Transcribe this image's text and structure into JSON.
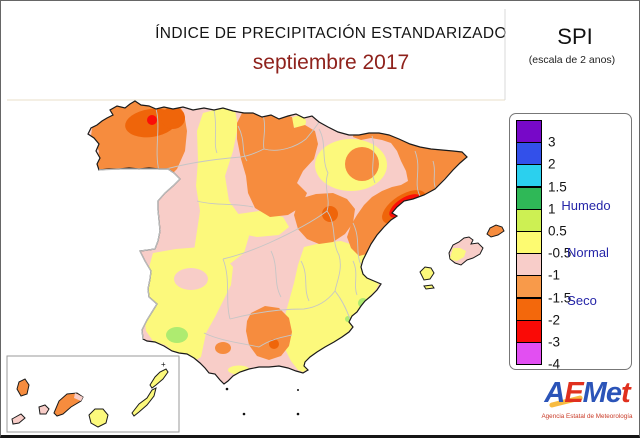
{
  "header": {
    "title": "ÍNDICE DE PRECIPITACIÓN ESTANDARIZADO",
    "subtitle": "septiembre 2017",
    "index_abbr": "SPI",
    "index_scale_note": "(escala de 2 anos)"
  },
  "legend": {
    "scale_values": [
      "3",
      "2",
      "1.5",
      "1",
      "0.5",
      "-0.5",
      "-1",
      "-1.5",
      "-2",
      "-3",
      "-4"
    ],
    "block_colors": [
      "#7708C8",
      "#3350EA",
      "#2BD0EE",
      "#2FB857",
      "#CDF053",
      "#FDFB71",
      "#F8CDC9",
      "#F89A4A",
      "#F3680C",
      "#FA0A06",
      "#E24FF2"
    ],
    "labels": {
      "wet": "Humedo",
      "normal": "Normal",
      "dry": "Seco"
    },
    "label_color": "#2525A8",
    "wet_marker_color": "#1A1A8F",
    "dry_marker_color": "#8B0E0E"
  },
  "map": {
    "palette": {
      "sea": "#FFFFFF",
      "yellow": "#FCF97C",
      "pink": "#F8CDC8",
      "orange": "#F68C3E",
      "dark_orange": "#EF650A",
      "red": "#FA0F08",
      "green": "#AEEB70",
      "coast": "#1A1A1A",
      "province_border": "#C6C6C6",
      "portugal_border": "#BBBBBB",
      "inset_border": "#9A9A9A",
      "frame_line": "#E9DFC8"
    },
    "plus_mark": "+"
  },
  "logo": {
    "letters": [
      {
        "char": "A",
        "color": "#2B54B8"
      },
      {
        "char": "E",
        "color": "#E0301E"
      },
      {
        "char": "M",
        "color": "#2B54B8"
      },
      {
        "char": "e",
        "color": "#2B54B8"
      },
      {
        "char": "t",
        "color": "#E0301E"
      }
    ],
    "tagline": "Agencia Estatal de Meteorología",
    "tagline_color": "#C93A26"
  }
}
